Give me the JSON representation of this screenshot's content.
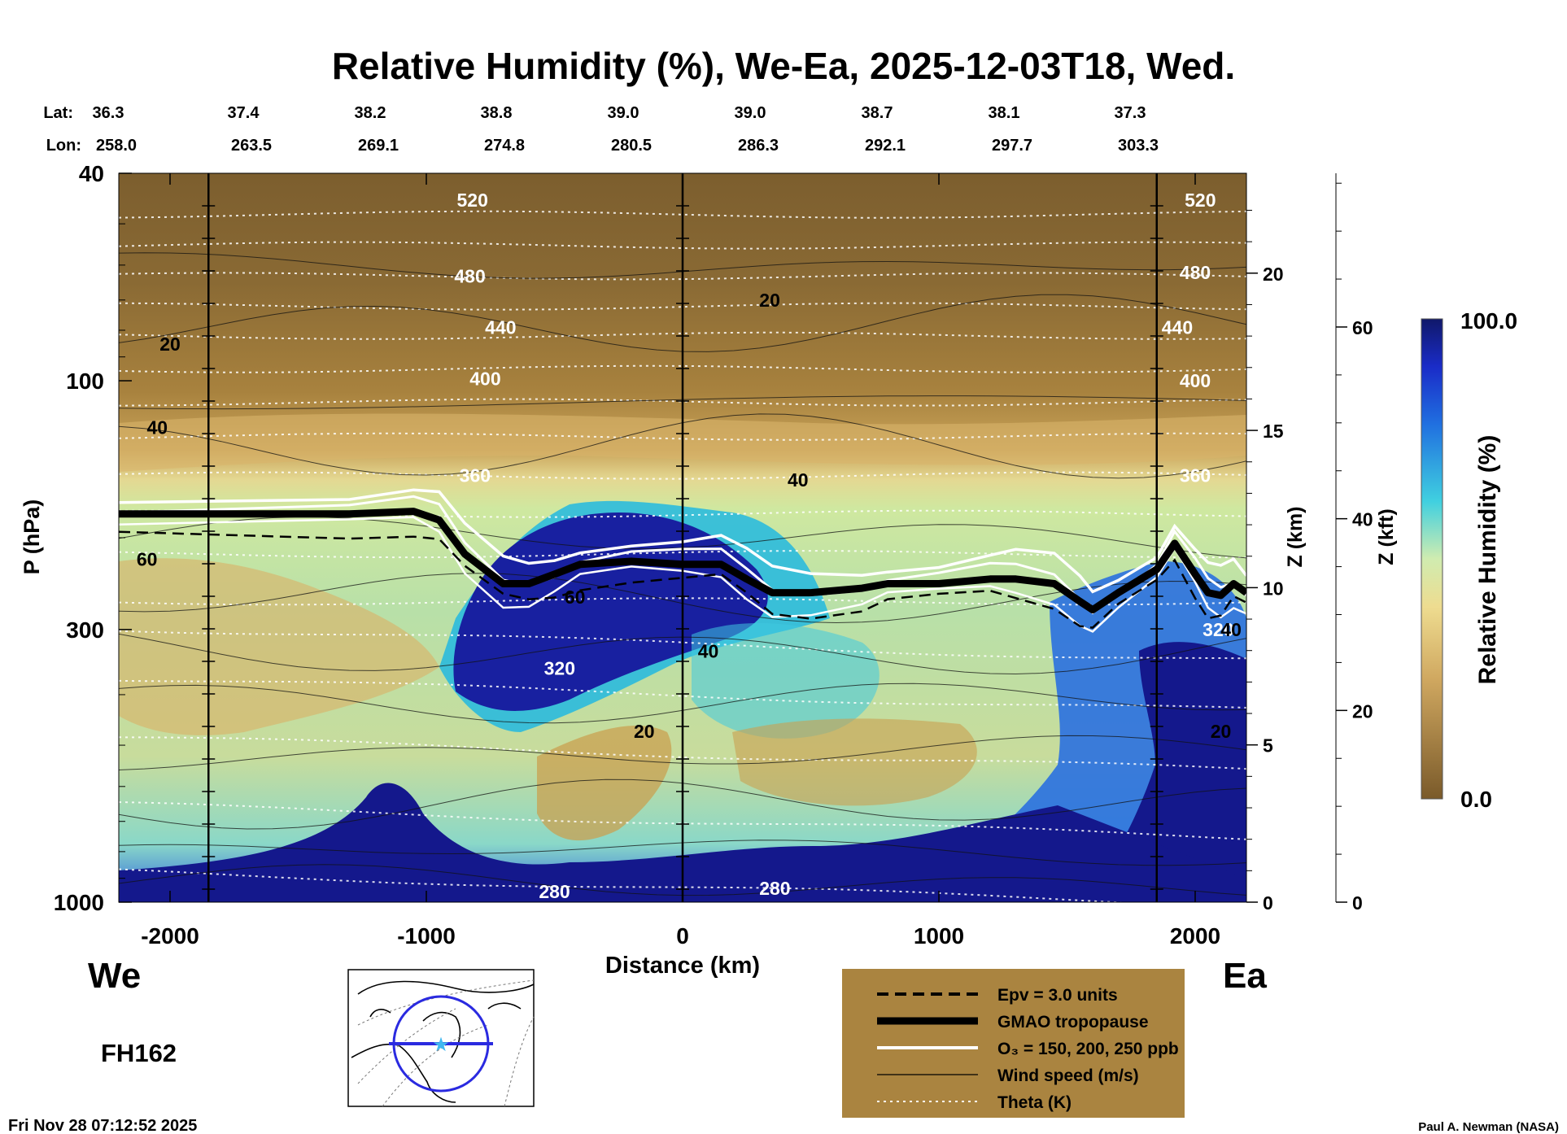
{
  "chart_data": {
    "type": "heatmap",
    "title": "Relative Humidity (%), We-Ea, 2025-12-03T18, Wed.",
    "xlabel": "Distance (km)",
    "ylabel": "P (hPa)",
    "y2label": "Z (km)",
    "y3label": "Z (kft)",
    "colorbar_label": "Relative Humidity (%)",
    "colorbar_range": [
      0.0,
      100.0
    ],
    "colorbar_ticks": [
      "100.0",
      "0.0"
    ],
    "xlim": [
      -2200,
      2200
    ],
    "ylim_hpa": [
      1000,
      40
    ],
    "x_ticks": [
      -2000,
      -1000,
      0,
      1000,
      2000
    ],
    "x_tick_labels": [
      "-2000",
      "-1000",
      "0",
      "1000",
      "2000"
    ],
    "p_ticks": [
      40,
      100,
      300,
      1000
    ],
    "p_tick_labels": [
      "40",
      "100",
      "300",
      "1000"
    ],
    "z_km_ticks": [
      0,
      5,
      10,
      15,
      20
    ],
    "z_km_tick_labels": [
      "0",
      "5",
      "10",
      "15",
      "20"
    ],
    "z_kft_ticks": [
      0,
      20,
      40,
      60
    ],
    "z_kft_tick_labels": [
      "0",
      "20",
      "40",
      "60"
    ],
    "lat_label": "Lat:",
    "lon_label": "Lon:",
    "lats": [
      "36.3",
      "37.4",
      "38.2",
      "38.8",
      "39.0",
      "39.0",
      "38.7",
      "38.1",
      "37.3"
    ],
    "lons": [
      "258.0",
      "263.5",
      "269.1",
      "274.8",
      "280.5",
      "286.3",
      "292.1",
      "297.7",
      "303.3"
    ],
    "station_lines_km": [
      -1850,
      0,
      1850
    ],
    "theta_labels": [
      {
        "x": -820,
        "p": 45,
        "text": "520"
      },
      {
        "x": 2020,
        "p": 45,
        "text": "520"
      },
      {
        "x": -830,
        "p": 63,
        "text": "480"
      },
      {
        "x": 2000,
        "p": 62,
        "text": "480"
      },
      {
        "x": -710,
        "p": 79,
        "text": "440"
      },
      {
        "x": 1930,
        "p": 79,
        "text": "440"
      },
      {
        "x": -770,
        "p": 99,
        "text": "400"
      },
      {
        "x": 2000,
        "p": 100,
        "text": "400"
      },
      {
        "x": -810,
        "p": 152,
        "text": "360"
      },
      {
        "x": 2000,
        "p": 152,
        "text": "360"
      },
      {
        "x": -480,
        "p": 356,
        "text": "320"
      },
      {
        "x": 2090,
        "p": 300,
        "text": "320"
      },
      {
        "x": -500,
        "p": 955,
        "text": "280"
      },
      {
        "x": 360,
        "p": 940,
        "text": "280"
      }
    ],
    "wind_labels": [
      {
        "x": -2000,
        "p": 85,
        "text": "20"
      },
      {
        "x": 340,
        "p": 70,
        "text": "20"
      },
      {
        "x": -2050,
        "p": 123,
        "text": "40"
      },
      {
        "x": 450,
        "p": 155,
        "text": "40"
      },
      {
        "x": -2090,
        "p": 220,
        "text": "60"
      },
      {
        "x": -420,
        "p": 260,
        "text": "60"
      },
      {
        "x": 100,
        "p": 330,
        "text": "40"
      },
      {
        "x": -150,
        "p": 470,
        "text": "20"
      },
      {
        "x": 2140,
        "p": 300,
        "text": "40"
      },
      {
        "x": 2100,
        "p": 470,
        "text": "20"
      }
    ],
    "legend": [
      {
        "style": "dashed",
        "label": "Epv = 3.0 units"
      },
      {
        "style": "thick",
        "label": "GMAO tropopause"
      },
      {
        "style": "white",
        "label": "O₃ = 150, 200, 250 ppb"
      },
      {
        "style": "thin",
        "label": "Wind speed (m/s)"
      },
      {
        "style": "dotted",
        "label": "Theta (K)"
      }
    ],
    "tropopause_hpa": [
      [
        -2200,
        180
      ],
      [
        -1300,
        180
      ],
      [
        -1050,
        178
      ],
      [
        -950,
        185
      ],
      [
        -850,
        215
      ],
      [
        -700,
        245
      ],
      [
        -600,
        245
      ],
      [
        -500,
        235
      ],
      [
        -400,
        225
      ],
      [
        -200,
        222
      ],
      [
        0,
        225
      ],
      [
        150,
        225
      ],
      [
        250,
        240
      ],
      [
        350,
        255
      ],
      [
        500,
        255
      ],
      [
        700,
        250
      ],
      [
        800,
        245
      ],
      [
        1000,
        245
      ],
      [
        1200,
        240
      ],
      [
        1300,
        240
      ],
      [
        1450,
        245
      ],
      [
        1550,
        265
      ],
      [
        1600,
        275
      ],
      [
        1700,
        255
      ],
      [
        1850,
        230
      ],
      [
        1920,
        205
      ],
      [
        2000,
        235
      ],
      [
        2050,
        255
      ],
      [
        2100,
        258
      ],
      [
        2150,
        245
      ],
      [
        2200,
        255
      ]
    ]
  },
  "labels": {
    "west": "We",
    "east": "Ea",
    "forecast_hour": "FH162",
    "timestamp": "Fri Nov 28 07:12:52 2025",
    "credit": "Paul A. Newman (NASA)"
  },
  "colors": {
    "rh_dry": "#8a6a34",
    "rh_mid": "#d8b46a",
    "rh_yellow": "#e6dc8c",
    "rh_cyan": "#40c8e0",
    "rh_blue": "#2a60e0",
    "rh_dark": "#14188c",
    "legend_bg": "#aa8440"
  }
}
